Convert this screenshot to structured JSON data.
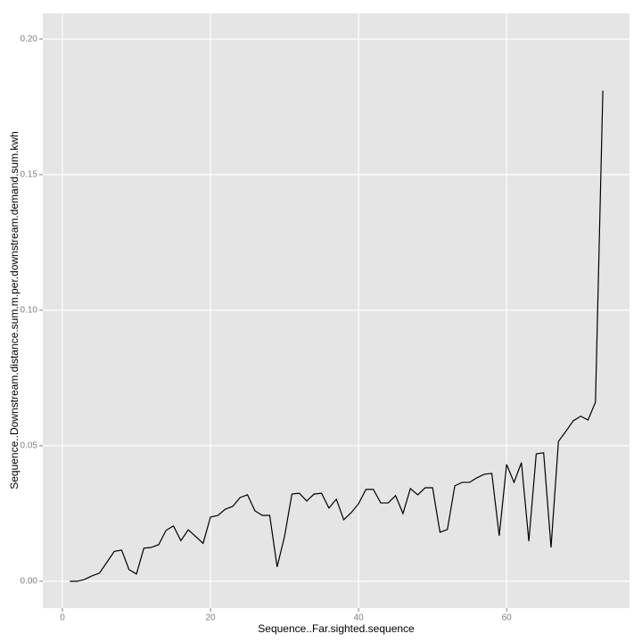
{
  "chart_data": {
    "type": "line",
    "x_label": "Sequence..Far.sighted.sequence",
    "y_label": "Sequence..Downstream.distance.sum.m.per.downstream.demand.sum.kwh",
    "x": [
      1,
      2,
      3,
      4,
      5,
      6,
      7,
      8,
      9,
      10,
      11,
      12,
      13,
      14,
      15,
      16,
      17,
      18,
      19,
      20,
      21,
      22,
      23,
      24,
      25,
      26,
      27,
      28,
      29,
      30,
      31,
      32,
      33,
      34,
      35,
      36,
      37,
      38,
      39,
      40,
      41,
      42,
      43,
      44,
      45,
      46,
      47,
      48,
      49,
      50,
      51,
      52,
      53,
      54,
      55,
      56,
      57,
      58,
      59,
      60,
      61,
      62,
      63,
      64,
      65,
      66,
      67,
      68,
      69,
      70,
      71,
      72,
      73
    ],
    "series": [
      {
        "color": "#000000",
        "values": [
          0,
          0,
          0.0007,
          0.002,
          0.003,
          0.007,
          0.011,
          0.0115,
          0.0043,
          0.0027,
          0.0122,
          0.0125,
          0.0135,
          0.0188,
          0.0204,
          0.015,
          0.019,
          0.0165,
          0.014,
          0.0237,
          0.0243,
          0.0266,
          0.0276,
          0.0309,
          0.0319,
          0.026,
          0.0243,
          0.0243,
          0.0053,
          0.0165,
          0.0322,
          0.0325,
          0.0296,
          0.0322,
          0.0325,
          0.027,
          0.0303,
          0.0227,
          0.0253,
          0.0286,
          0.0339,
          0.0339,
          0.0289,
          0.0289,
          0.0316,
          0.025,
          0.0342,
          0.0319,
          0.0345,
          0.0345,
          0.0181,
          0.0191,
          0.0352,
          0.0365,
          0.0365,
          0.0382,
          0.0395,
          0.0398,
          0.0168,
          0.0431,
          0.0365,
          0.0438,
          0.0148,
          0.047,
          0.0474,
          0.0125,
          0.0516,
          0.0553,
          0.0592,
          0.0609,
          0.0595,
          0.0661,
          0.181
        ]
      }
    ],
    "xlim": [
      -2.65,
      76.6
    ],
    "xticks": [
      0,
      20,
      40,
      60
    ],
    "ylim": [
      -0.0099,
      0.2095
    ],
    "yticks": [
      {
        "value": 0,
        "label": "0.00"
      },
      {
        "value": 0.05,
        "label": "0.05"
      },
      {
        "value": 0.1,
        "label": "0.10"
      },
      {
        "value": 0.15,
        "label": "0.15"
      },
      {
        "value": 0.2,
        "label": "0.20"
      }
    ],
    "grid": true,
    "background": "#e5e5e5"
  }
}
